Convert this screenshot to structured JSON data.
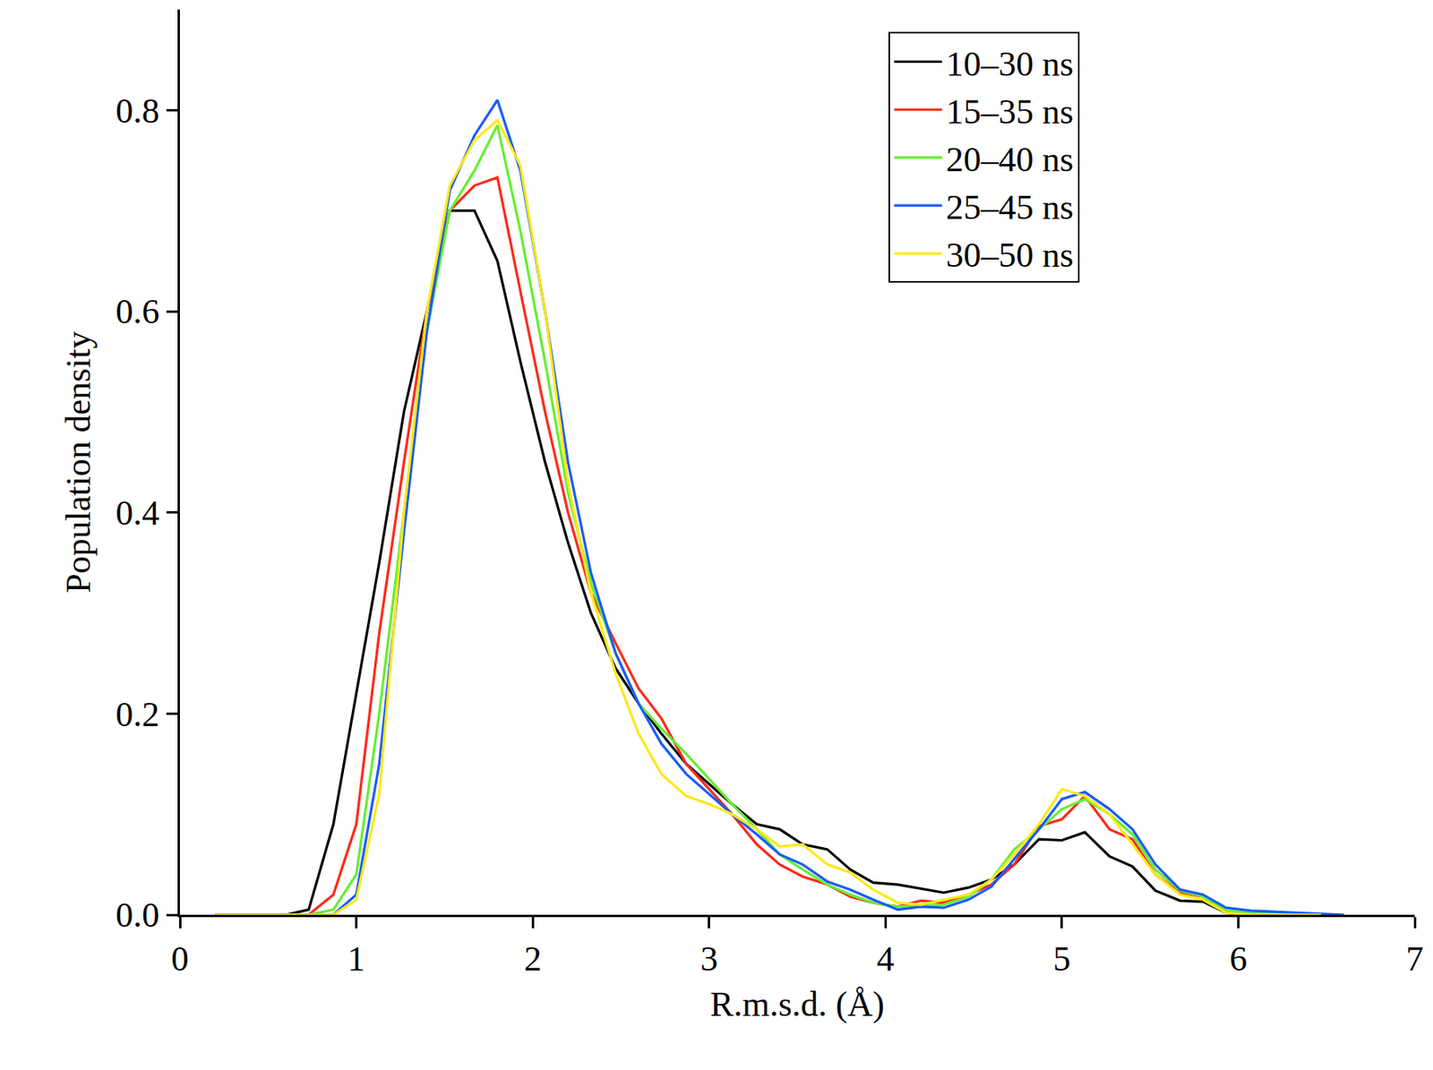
{
  "chart_data": {
    "type": "line",
    "x_label": "R.m.s.d. (Å)",
    "y_label": "Population density",
    "x": [
      0.2,
      0.33,
      0.47,
      0.6,
      0.73,
      0.87,
      1.0,
      1.13,
      1.27,
      1.4,
      1.53,
      1.67,
      1.8,
      1.93,
      2.07,
      2.2,
      2.33,
      2.47,
      2.6,
      2.73,
      2.87,
      3.0,
      3.13,
      3.27,
      3.4,
      3.53,
      3.67,
      3.8,
      3.93,
      4.07,
      4.2,
      4.33,
      4.47,
      4.6,
      4.73,
      4.87,
      5.0,
      5.13,
      5.27,
      5.4,
      5.53,
      5.67,
      5.8,
      5.93,
      6.07,
      6.2,
      6.33,
      6.47,
      6.6
    ],
    "series": [
      {
        "name": "10–30 ns",
        "color": "#000000",
        "values": [
          0,
          0,
          0,
          0,
          0.005,
          0.09,
          0.22,
          0.35,
          0.5,
          0.6,
          0.7,
          0.7,
          0.65,
          0.55,
          0.45,
          0.37,
          0.3,
          0.245,
          0.21,
          0.18,
          0.15,
          0.13,
          0.11,
          0.09,
          0.085,
          0.07,
          0.065,
          0.045,
          0.032,
          0.03,
          0.026,
          0.022,
          0.027,
          0.035,
          0.05,
          0.075,
          0.074,
          0.082,
          0.058,
          0.048,
          0.024,
          0.014,
          0.013,
          0.002,
          0,
          0,
          0,
          0,
          null
        ]
      },
      {
        "name": "15–35 ns",
        "color": "#ff2a1a",
        "values": [
          0,
          0,
          0,
          0,
          0,
          0.02,
          0.09,
          0.28,
          0.45,
          0.6,
          0.7,
          0.725,
          0.733,
          0.62,
          0.5,
          0.4,
          0.32,
          0.27,
          0.225,
          0.195,
          0.15,
          0.125,
          0.1,
          0.07,
          0.05,
          0.038,
          0.03,
          0.018,
          0.012,
          0.008,
          0.014,
          0.012,
          0.02,
          0.03,
          0.05,
          0.088,
          0.095,
          0.118,
          0.085,
          0.075,
          0.04,
          0.022,
          0.018,
          0.003,
          0,
          0,
          0,
          0,
          null
        ]
      },
      {
        "name": "20–40 ns",
        "color": "#66ee33",
        "values": [
          0,
          0,
          0,
          0,
          0,
          0.005,
          0.04,
          0.2,
          0.4,
          0.58,
          0.7,
          0.74,
          0.785,
          0.68,
          0.55,
          0.42,
          0.33,
          0.26,
          0.21,
          0.185,
          0.16,
          0.135,
          0.11,
          0.085,
          0.06,
          0.045,
          0.03,
          0.02,
          0.012,
          0.008,
          0.009,
          0.01,
          0.018,
          0.035,
          0.065,
          0.085,
          0.105,
          0.115,
          0.1,
          0.08,
          0.045,
          0.024,
          0.018,
          0.004,
          0.002,
          0.001,
          0,
          0,
          null
        ]
      },
      {
        "name": "25–45 ns",
        "color": "#1a5cff",
        "values": [
          0,
          0,
          0,
          0,
          0,
          0,
          0.02,
          0.15,
          0.38,
          0.58,
          0.72,
          0.775,
          0.81,
          0.74,
          0.6,
          0.45,
          0.34,
          0.26,
          0.21,
          0.17,
          0.14,
          0.12,
          0.1,
          0.08,
          0.06,
          0.05,
          0.033,
          0.025,
          0.015,
          0.005,
          0.008,
          0.007,
          0.015,
          0.028,
          0.055,
          0.085,
          0.115,
          0.122,
          0.105,
          0.085,
          0.05,
          0.025,
          0.02,
          0.007,
          0.004,
          0.003,
          0.002,
          0.001,
          0
        ]
      },
      {
        "name": "30–50 ns",
        "color": "#ffe81a",
        "values": [
          0,
          0,
          0,
          0,
          0,
          0,
          0.015,
          0.12,
          0.4,
          0.6,
          0.725,
          0.77,
          0.79,
          0.745,
          0.6,
          0.43,
          0.32,
          0.24,
          0.18,
          0.14,
          0.118,
          0.11,
          0.1,
          0.085,
          0.068,
          0.07,
          0.05,
          0.042,
          0.025,
          0.012,
          0.01,
          0.015,
          0.02,
          0.035,
          0.06,
          0.09,
          0.125,
          0.118,
          0.1,
          0.07,
          0.04,
          0.02,
          0.015,
          0.002,
          0,
          0,
          0,
          0,
          null
        ]
      }
    ],
    "xlim": [
      0,
      7
    ],
    "xticks": [
      0,
      1,
      2,
      3,
      4,
      5,
      6,
      7
    ],
    "ylim": [
      0,
      0.9
    ],
    "yticks": [
      {
        "value": 0,
        "label": "0.0"
      },
      0.2,
      0.4,
      0.6,
      0.8
    ],
    "grid": false,
    "legend": "top right"
  }
}
